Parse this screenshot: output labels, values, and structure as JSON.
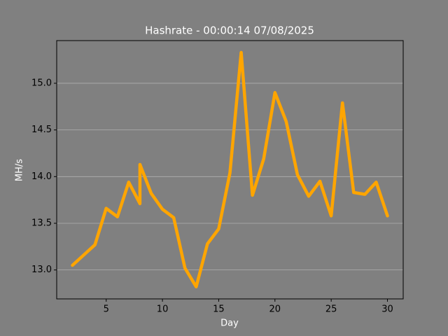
{
  "chart_data": {
    "type": "line",
    "title": "Hashrate - 00:00:14 07/08/2025",
    "x_label": "Day",
    "y_label": "MH/s",
    "x": [
      2,
      4,
      5,
      6,
      7,
      8,
      8,
      9,
      10,
      11,
      12,
      13,
      14,
      15,
      16,
      17,
      18,
      19,
      20,
      21,
      22,
      23,
      24,
      25,
      26,
      27,
      28,
      29,
      30
    ],
    "series": [
      {
        "name": "Hashrate",
        "color": "#ffa500",
        "values": [
          13.05,
          13.27,
          13.66,
          13.57,
          13.94,
          13.71,
          14.13,
          13.82,
          13.65,
          13.56,
          13.02,
          12.82,
          13.28,
          13.44,
          14.04,
          15.33,
          13.8,
          14.19,
          14.9,
          14.59,
          14.02,
          13.79,
          13.95,
          13.58,
          14.79,
          13.83,
          13.81,
          13.94,
          13.58
        ]
      }
    ],
    "xlim": [
      0.6,
      31.4
    ],
    "xticks": [
      5,
      10,
      15,
      20,
      25,
      30
    ],
    "ylim": [
      12.69,
      15.457
    ],
    "yticks": [
      {
        "value": 13,
        "label": "13.0"
      },
      {
        "value": 13.5,
        "label": "13.5"
      },
      {
        "value": 14,
        "label": "14.0"
      },
      {
        "value": 14.5,
        "label": "14.5"
      },
      {
        "value": 15,
        "label": "15.0"
      }
    ],
    "grid": true
  }
}
